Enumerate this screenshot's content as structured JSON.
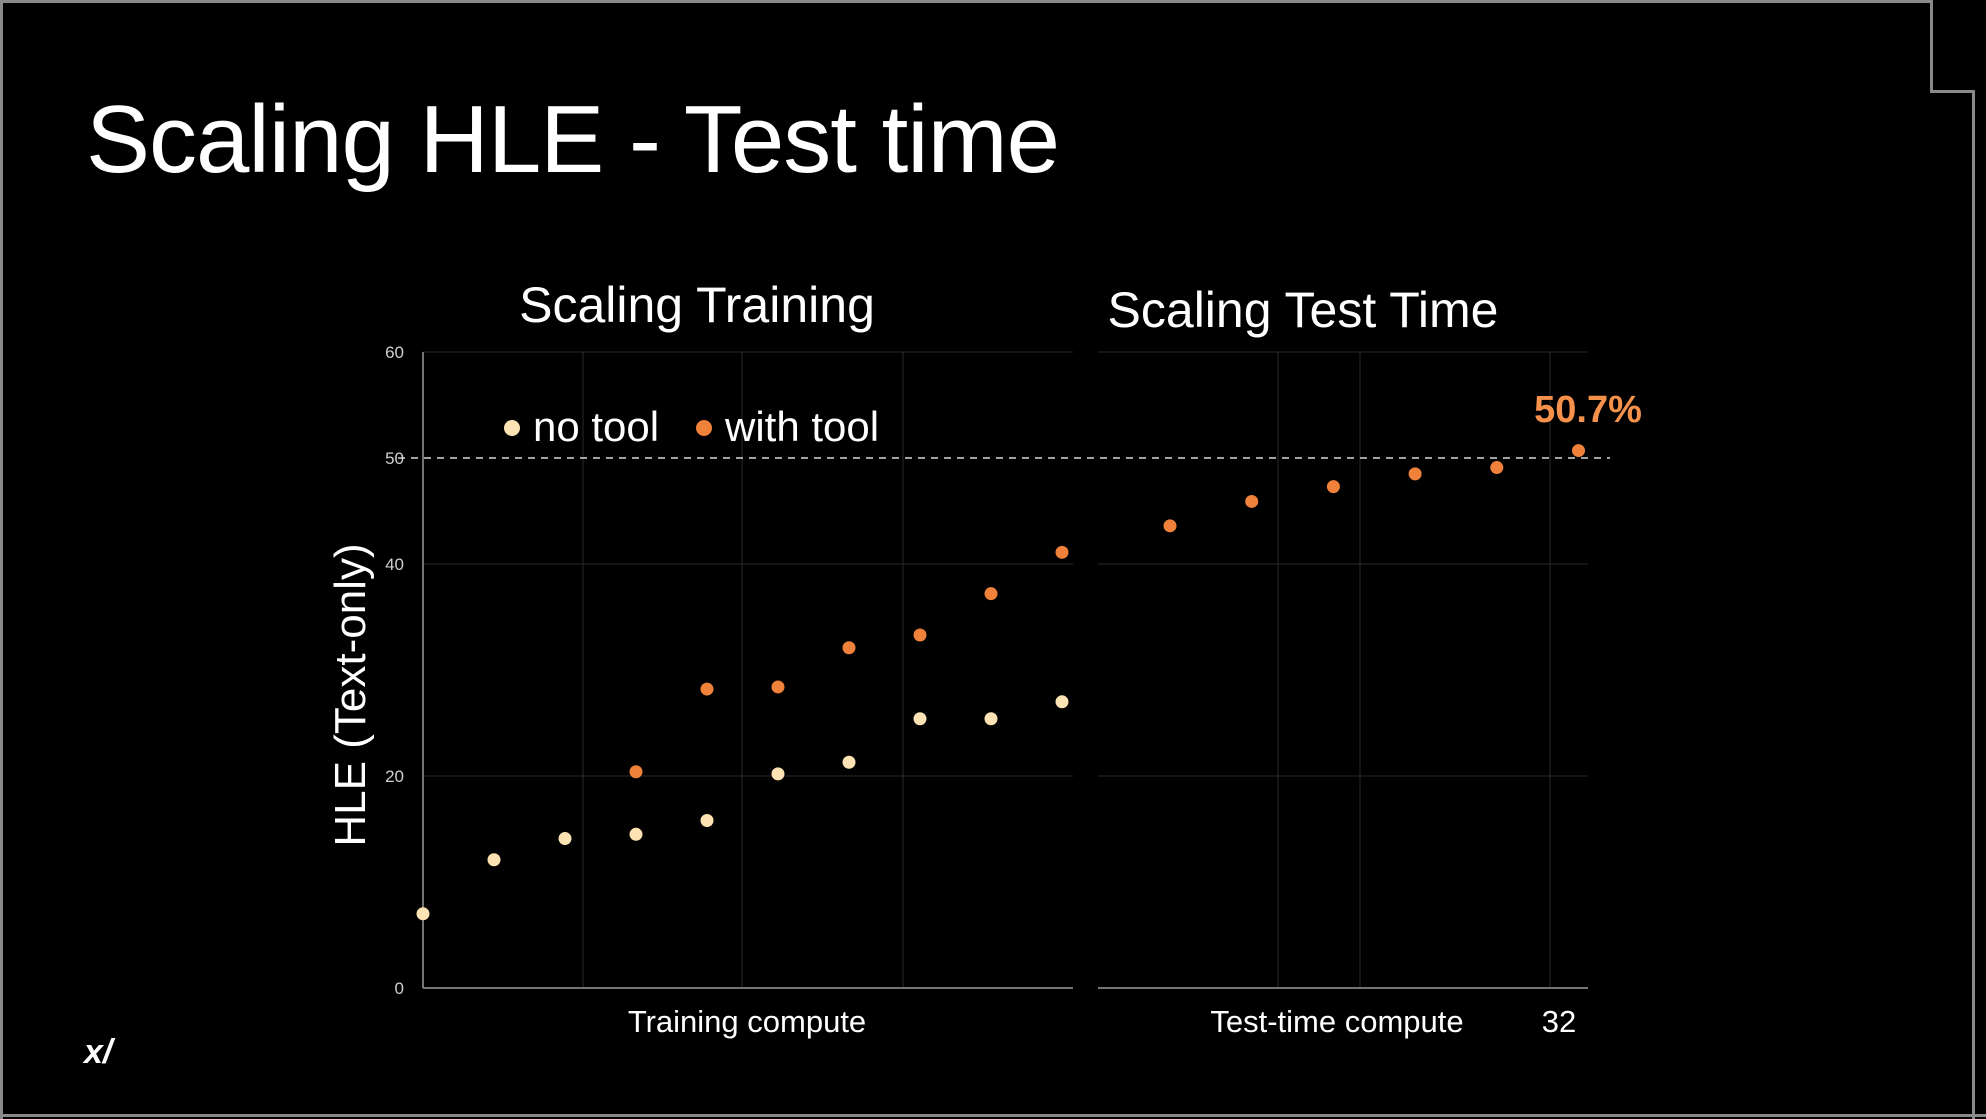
{
  "slide": {
    "title": "Scaling HLE - Test time",
    "logo_text": "x/"
  },
  "colors": {
    "background": "#000000",
    "no_tool": "#fde2b4",
    "with_tool": "#f0813a",
    "highlight_text": "#f5914a",
    "grid": "#2a2a2a",
    "axis": "#9a9a9a"
  },
  "chart_data": {
    "type": "scatter",
    "ylabel": "HLE (Text-only)",
    "ylim": [
      0,
      60
    ],
    "yticks": [
      0,
      20,
      40,
      50,
      60
    ],
    "grid": true,
    "legend": {
      "placement": "top-left",
      "entries": [
        "no tool",
        "with tool"
      ]
    },
    "reference_line": {
      "y": 50,
      "style": "dashed"
    },
    "panels": [
      {
        "title": "Scaling Training",
        "xlabel": "Training compute",
        "series": [
          {
            "name": "no tool",
            "x": [
              1,
              2,
              3,
              4,
              5,
              6,
              7,
              8,
              9,
              10
            ],
            "y": [
              7.0,
              12.1,
              14.1,
              14.5,
              15.8,
              20.2,
              21.3,
              25.4,
              25.4,
              27.0
            ]
          },
          {
            "name": "with tool",
            "x": [
              4,
              5,
              6,
              7,
              8,
              9,
              10
            ],
            "y": [
              20.4,
              28.2,
              28.4,
              32.1,
              33.3,
              37.2,
              41.1
            ]
          }
        ]
      },
      {
        "title": "Scaling Test Time",
        "xlabel": "Test-time compute",
        "x_tick_labels": [
          "32"
        ],
        "series": [
          {
            "name": "with tool",
            "x": [
              1,
              2,
              3,
              4,
              5,
              6
            ],
            "y": [
              43.6,
              45.9,
              47.3,
              48.5,
              49.1,
              50.7
            ]
          }
        ],
        "annotation": "50.7%"
      }
    ]
  }
}
